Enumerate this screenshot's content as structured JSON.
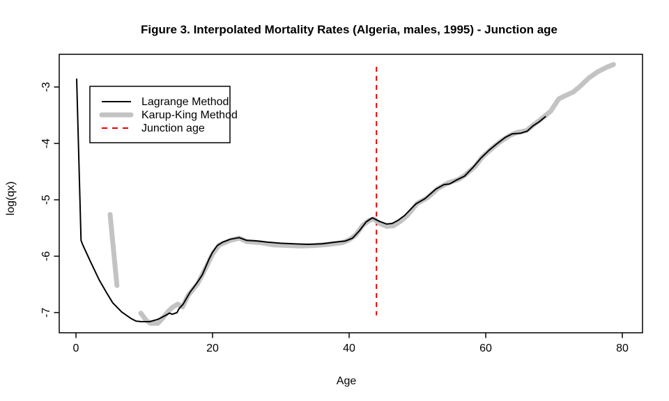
{
  "figure": {
    "title": "Figure 3. Interpolated Mortality Rates (Algeria, males, 1995) - Junction age"
  },
  "chart_data": {
    "type": "line",
    "title": "Figure 3. Interpolated Mortality Rates (Algeria, males, 1995) - Junction age",
    "xlabel": "Age",
    "ylabel": "log(qx)",
    "xlim": [
      0,
      80
    ],
    "ylim": [
      -7.4,
      -2.4
    ],
    "x_ticks": [
      0,
      20,
      40,
      60,
      80
    ],
    "y_ticks": [
      -7,
      -6,
      -5,
      -4,
      -3
    ],
    "grid": false,
    "junction_age": 44,
    "colors": {
      "lagrange": "#000000",
      "karup_king": "#c3c3c3",
      "junction": "#e60000"
    },
    "legend": {
      "position": "top-left",
      "entries": [
        {
          "label": "Lagrange Method",
          "color": "#000000",
          "style": "solid-thin"
        },
        {
          "label": "Karup-King Method",
          "color": "#c3c3c3",
          "style": "solid-thick"
        },
        {
          "label": "Junction age",
          "color": "#e60000",
          "style": "dashed"
        }
      ]
    },
    "series": [
      {
        "name": "Lagrange Method",
        "color": "#000000",
        "width": 2,
        "points": [
          [
            0.1,
            -2.85
          ],
          [
            0.75,
            -5.72
          ],
          [
            1.0,
            -5.8
          ],
          [
            2.1,
            -6.09
          ],
          [
            3.4,
            -6.42
          ],
          [
            4.5,
            -6.65
          ],
          [
            5.4,
            -6.83
          ],
          [
            6.7,
            -6.99
          ],
          [
            8.0,
            -7.1
          ],
          [
            8.8,
            -7.15
          ],
          [
            9.6,
            -7.16
          ],
          [
            10.8,
            -7.16
          ],
          [
            12.0,
            -7.12
          ],
          [
            13.1,
            -7.05
          ],
          [
            13.7,
            -7.01
          ],
          [
            14.1,
            -7.03
          ],
          [
            14.8,
            -7.0
          ],
          [
            15.1,
            -6.93
          ],
          [
            15.7,
            -6.85
          ],
          [
            16.7,
            -6.64
          ],
          [
            17.8,
            -6.46
          ],
          [
            18.5,
            -6.33
          ],
          [
            19.5,
            -6.05
          ],
          [
            20.0,
            -5.93
          ],
          [
            20.7,
            -5.81
          ],
          [
            21.5,
            -5.75
          ],
          [
            22.6,
            -5.7
          ],
          [
            23.9,
            -5.67
          ],
          [
            25.0,
            -5.72
          ],
          [
            26.5,
            -5.73
          ],
          [
            28.0,
            -5.75
          ],
          [
            30.0,
            -5.77
          ],
          [
            32.0,
            -5.78
          ],
          [
            34.0,
            -5.79
          ],
          [
            36.0,
            -5.78
          ],
          [
            38.0,
            -5.75
          ],
          [
            39.5,
            -5.73
          ],
          [
            40.5,
            -5.68
          ],
          [
            41.5,
            -5.55
          ],
          [
            42.5,
            -5.39
          ],
          [
            43.4,
            -5.32
          ],
          [
            44.4,
            -5.38
          ],
          [
            45.5,
            -5.43
          ],
          [
            46.3,
            -5.42
          ],
          [
            47.2,
            -5.36
          ],
          [
            48.1,
            -5.28
          ],
          [
            49.8,
            -5.07
          ],
          [
            51.1,
            -4.98
          ],
          [
            52.7,
            -4.81
          ],
          [
            53.9,
            -4.73
          ],
          [
            54.7,
            -4.72
          ],
          [
            55.7,
            -4.65
          ],
          [
            56.9,
            -4.58
          ],
          [
            58.1,
            -4.43
          ],
          [
            59.3,
            -4.26
          ],
          [
            60.5,
            -4.12
          ],
          [
            61.6,
            -4.01
          ],
          [
            62.9,
            -3.89
          ],
          [
            63.9,
            -3.83
          ],
          [
            65.1,
            -3.82
          ],
          [
            66.1,
            -3.78
          ],
          [
            66.9,
            -3.69
          ],
          [
            67.8,
            -3.62
          ],
          [
            68.8,
            -3.52
          ]
        ]
      },
      {
        "name": "Karup-King Method (young-age segment)",
        "color": "#c3c3c3",
        "width": 7,
        "points": [
          [
            5.0,
            -5.26
          ],
          [
            6.0,
            -6.52
          ]
        ]
      },
      {
        "name": "Karup-King Method",
        "color": "#c3c3c3",
        "width": 7,
        "points": [
          [
            9.5,
            -7.01
          ],
          [
            10.3,
            -7.14
          ],
          [
            10.9,
            -7.19
          ],
          [
            12.0,
            -7.19
          ],
          [
            12.7,
            -7.1
          ],
          [
            13.5,
            -6.98
          ],
          [
            14.1,
            -6.91
          ],
          [
            14.9,
            -6.85
          ],
          [
            15.6,
            -6.9
          ],
          [
            16.4,
            -6.7
          ],
          [
            17.8,
            -6.49
          ],
          [
            19.0,
            -6.21
          ],
          [
            20.0,
            -5.96
          ],
          [
            21.0,
            -5.8
          ],
          [
            22.6,
            -5.72
          ],
          [
            23.9,
            -5.68
          ],
          [
            25.0,
            -5.74
          ],
          [
            27.0,
            -5.76
          ],
          [
            29.0,
            -5.8
          ],
          [
            31.0,
            -5.81
          ],
          [
            33.0,
            -5.82
          ],
          [
            35.0,
            -5.81
          ],
          [
            37.0,
            -5.79
          ],
          [
            39.0,
            -5.76
          ],
          [
            40.0,
            -5.71
          ],
          [
            41.0,
            -5.62
          ],
          [
            42.0,
            -5.45
          ],
          [
            43.0,
            -5.36
          ],
          [
            43.6,
            -5.34
          ],
          [
            44.5,
            -5.42
          ],
          [
            45.5,
            -5.47
          ],
          [
            46.5,
            -5.46
          ],
          [
            47.5,
            -5.38
          ],
          [
            48.5,
            -5.28
          ],
          [
            50.0,
            -5.06
          ],
          [
            51.5,
            -4.96
          ],
          [
            53.0,
            -4.8
          ],
          [
            54.5,
            -4.7
          ],
          [
            56.0,
            -4.64
          ],
          [
            57.0,
            -4.56
          ],
          [
            58.5,
            -4.4
          ],
          [
            59.5,
            -4.24
          ],
          [
            61.0,
            -4.08
          ],
          [
            62.0,
            -3.98
          ],
          [
            63.5,
            -3.86
          ],
          [
            64.5,
            -3.81
          ],
          [
            66.0,
            -3.77
          ],
          [
            67.0,
            -3.67
          ],
          [
            68.0,
            -3.58
          ],
          [
            69.5,
            -3.43
          ],
          [
            70.7,
            -3.21
          ],
          [
            71.7,
            -3.15
          ],
          [
            72.8,
            -3.09
          ],
          [
            73.8,
            -2.99
          ],
          [
            75.1,
            -2.84
          ],
          [
            76.4,
            -2.73
          ],
          [
            77.7,
            -2.65
          ],
          [
            78.7,
            -2.6
          ]
        ]
      }
    ]
  }
}
